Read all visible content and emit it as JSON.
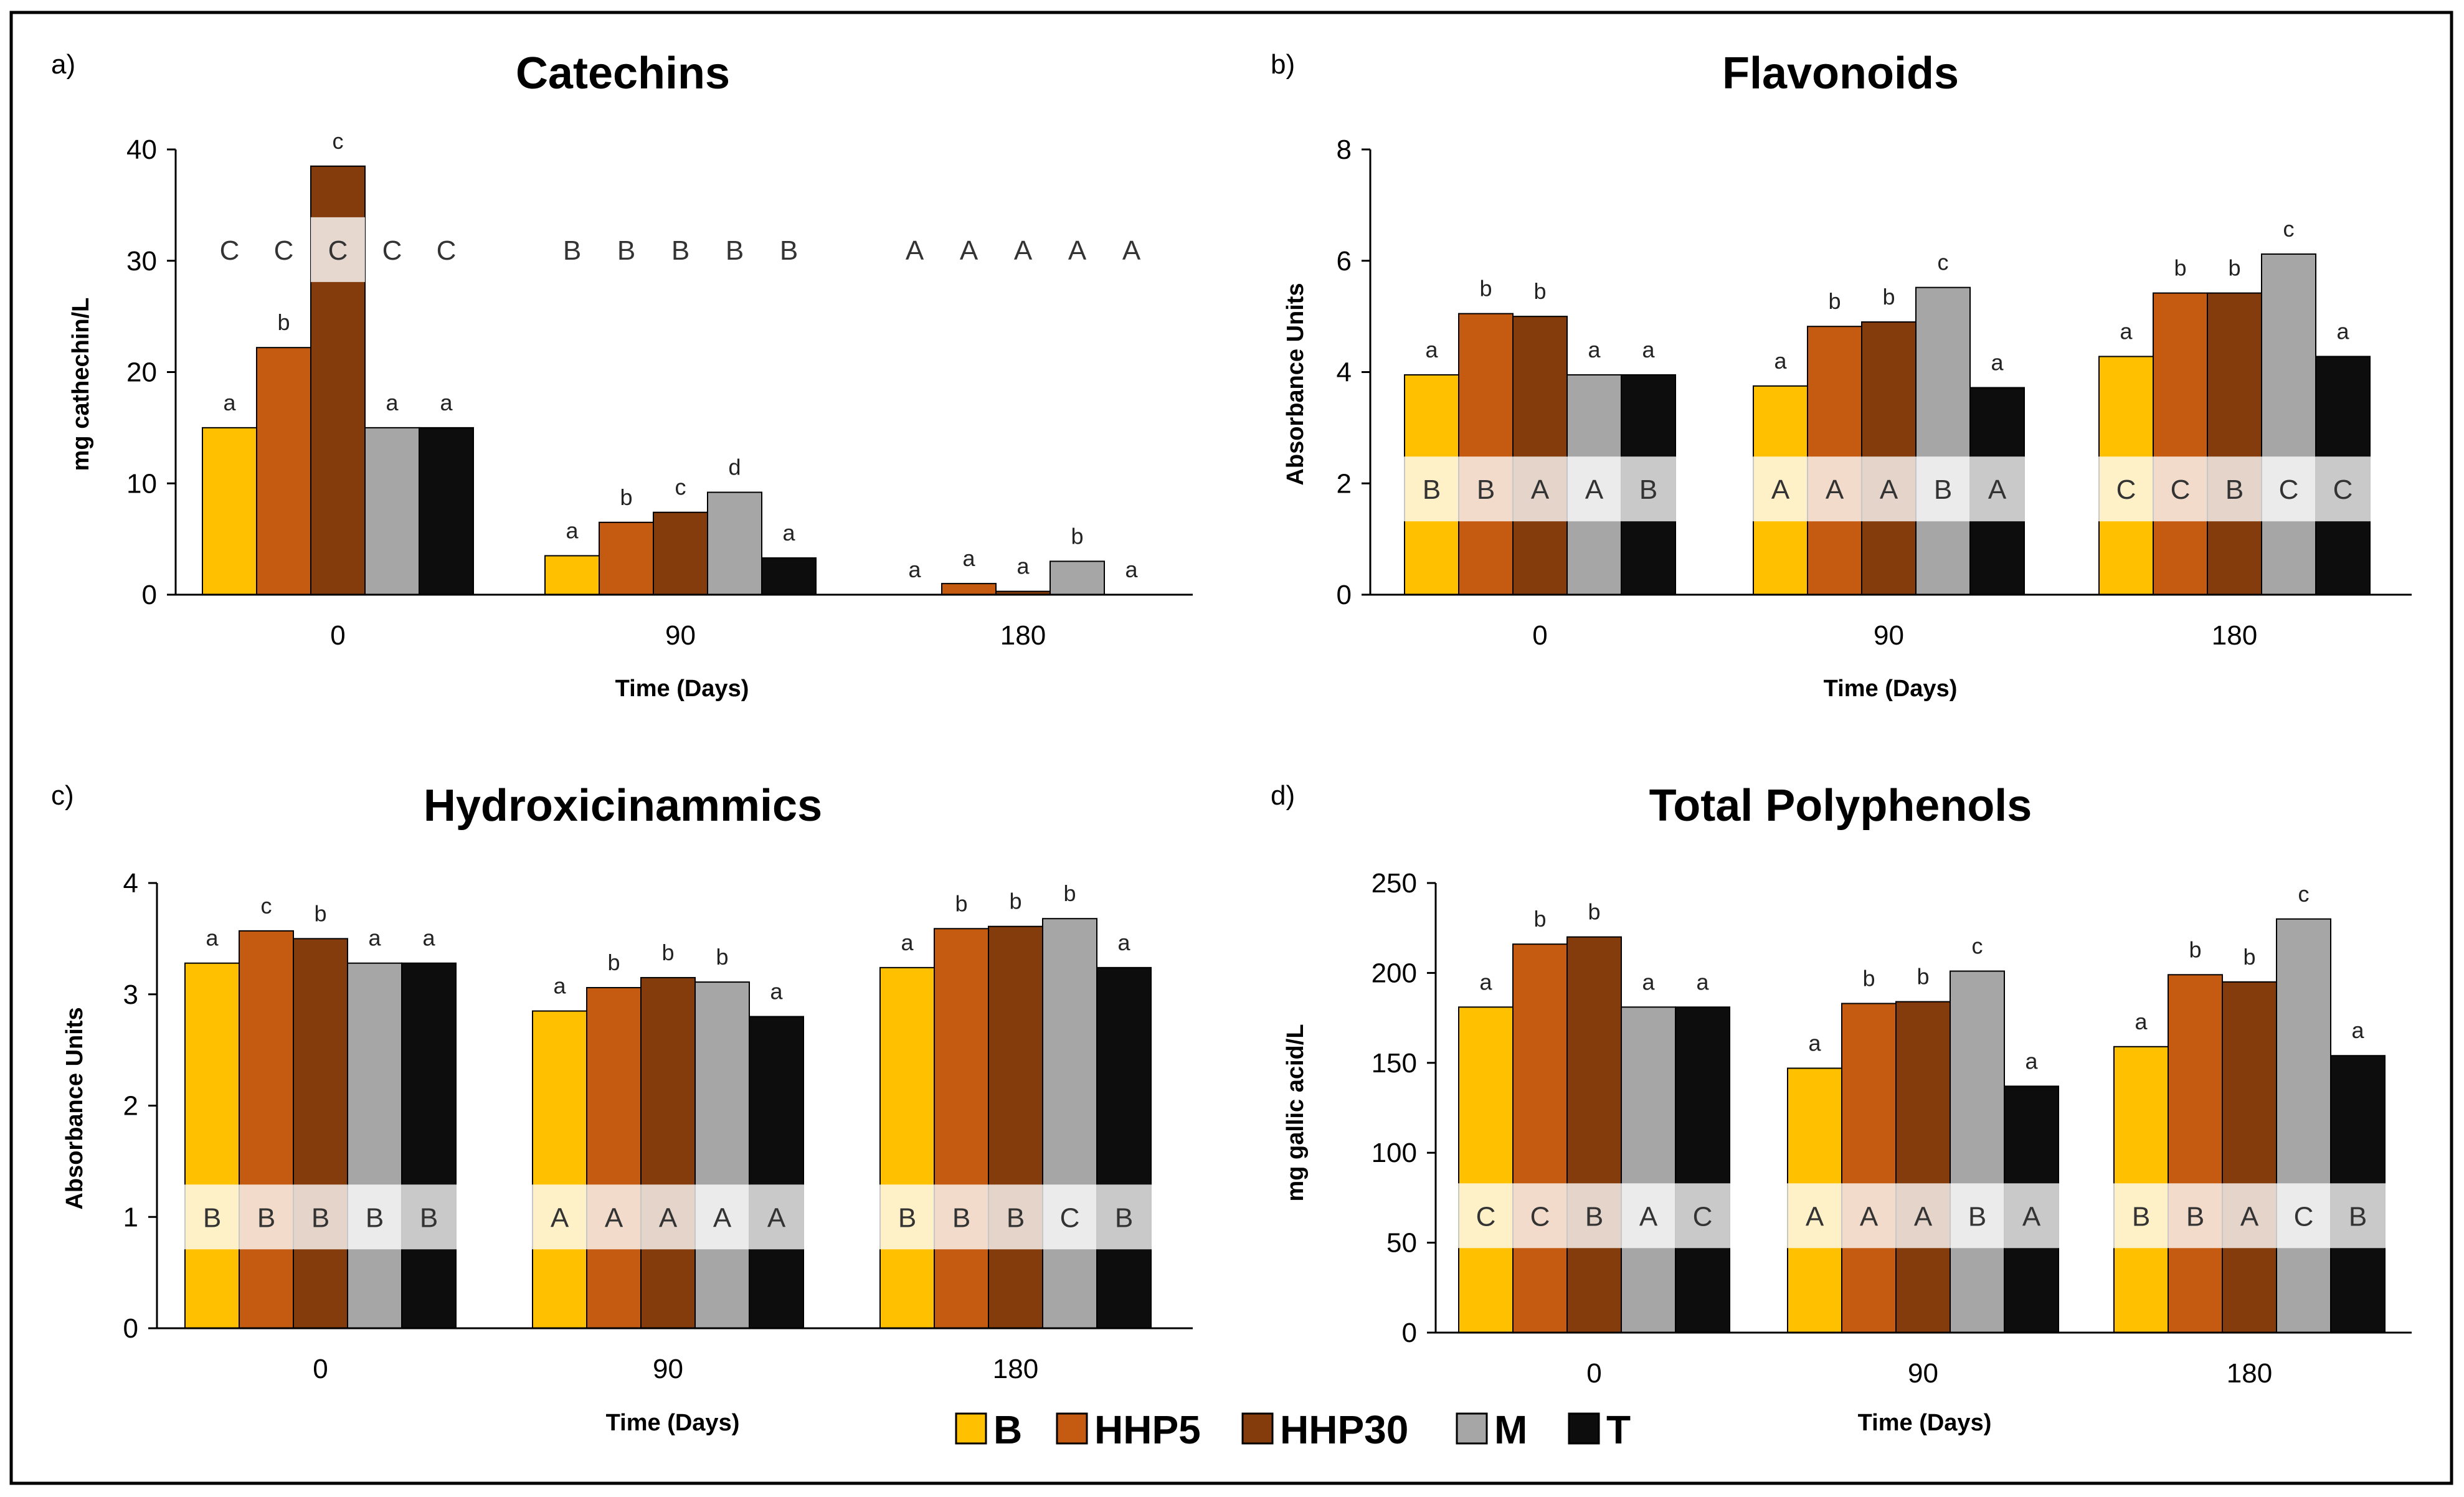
{
  "legend": [
    {
      "name": "B",
      "color": "#FFC000"
    },
    {
      "name": "HHP5",
      "color": "#C55A11"
    },
    {
      "name": "HHP30",
      "color": "#843C0C"
    },
    {
      "name": "M",
      "color": "#A6A6A6"
    },
    {
      "name": "T",
      "color": "#0D0D0D"
    }
  ],
  "chart_data": [
    {
      "panel": "a)",
      "type": "bar",
      "title": "Catechins",
      "ylabel": "mg cathechin/L",
      "xlabel": "Time (Days)",
      "ylim": [
        0,
        40
      ],
      "yticks": [
        0,
        10,
        20,
        30,
        40
      ],
      "categories": [
        "0",
        "90",
        "180"
      ],
      "series": [
        {
          "name": "B",
          "values": [
            15,
            3.5,
            0
          ]
        },
        {
          "name": "HHP5",
          "values": [
            22.2,
            6.5,
            1
          ]
        },
        {
          "name": "HHP30",
          "values": [
            38.5,
            7.4,
            0.3
          ]
        },
        {
          "name": "M",
          "values": [
            15,
            9.2,
            3
          ]
        },
        {
          "name": "T",
          "values": [
            15,
            3.3,
            0
          ]
        }
      ],
      "letters_lower": [
        [
          "a",
          "b",
          "c",
          "a",
          "a"
        ],
        [
          "a",
          "b",
          "c",
          "d",
          "a"
        ],
        [
          "a",
          "a",
          "a",
          "b",
          "a"
        ]
      ],
      "letters_upper": [
        [
          "C",
          "C",
          "C",
          "C",
          "C"
        ],
        [
          "B",
          "B",
          "B",
          "B",
          "B"
        ],
        [
          "A",
          "A",
          "A",
          "A",
          "A"
        ]
      ],
      "upper_band_value": 31,
      "upper_band_shaded": false
    },
    {
      "panel": "b)",
      "type": "bar",
      "title": "Flavonoids",
      "ylabel": "Absorbance  Units",
      "xlabel": "Time (Days)",
      "ylim": [
        0,
        8
      ],
      "yticks": [
        0,
        2,
        4,
        6,
        8
      ],
      "categories": [
        "0",
        "90",
        "180"
      ],
      "series": [
        {
          "name": "B",
          "values": [
            3.95,
            3.75,
            4.28
          ]
        },
        {
          "name": "HHP5",
          "values": [
            5.05,
            4.82,
            5.42
          ]
        },
        {
          "name": "HHP30",
          "values": [
            5.0,
            4.9,
            5.42
          ]
        },
        {
          "name": "M",
          "values": [
            3.95,
            5.52,
            6.12
          ]
        },
        {
          "name": "T",
          "values": [
            3.95,
            3.72,
            4.28
          ]
        }
      ],
      "letters_lower": [
        [
          "a",
          "b",
          "b",
          "a",
          "a"
        ],
        [
          "a",
          "b",
          "b",
          "c",
          "a"
        ],
        [
          "a",
          "b",
          "b",
          "c",
          "a"
        ]
      ],
      "letters_upper": [
        [
          "B",
          "B",
          "A",
          "A",
          "B"
        ],
        [
          "A",
          "A",
          "A",
          "B",
          "A"
        ],
        [
          "C",
          "C",
          "B",
          "C",
          "C"
        ]
      ],
      "upper_band_value": 1.9,
      "upper_band_shaded": true
    },
    {
      "panel": "c)",
      "type": "bar",
      "title": "Hydroxicinammics",
      "ylabel": "Absorbance Units",
      "xlabel": "Time (Days)",
      "ylim": [
        0,
        4
      ],
      "yticks": [
        0,
        1,
        2,
        3,
        4
      ],
      "categories": [
        "0",
        "90",
        "180"
      ],
      "series": [
        {
          "name": "B",
          "values": [
            3.28,
            2.85,
            3.24
          ]
        },
        {
          "name": "HHP5",
          "values": [
            3.57,
            3.06,
            3.59
          ]
        },
        {
          "name": "HHP30",
          "values": [
            3.5,
            3.15,
            3.61
          ]
        },
        {
          "name": "M",
          "values": [
            3.28,
            3.11,
            3.68
          ]
        },
        {
          "name": "T",
          "values": [
            3.28,
            2.8,
            3.24
          ]
        }
      ],
      "letters_lower": [
        [
          "a",
          "c",
          "b",
          "a",
          "a"
        ],
        [
          "a",
          "b",
          "b",
          "b",
          "a"
        ],
        [
          "a",
          "b",
          "b",
          "b",
          "a"
        ]
      ],
      "letters_upper": [
        [
          "B",
          "B",
          "B",
          "B",
          "B"
        ],
        [
          "A",
          "A",
          "A",
          "A",
          "A"
        ],
        [
          "B",
          "B",
          "B",
          "C",
          "B"
        ]
      ],
      "upper_band_value": 1,
      "upper_band_shaded": true
    },
    {
      "panel": "d)",
      "type": "bar",
      "title": "Total Polyphenols",
      "ylabel": "mg gallic acid/L",
      "xlabel": "Time (Days)",
      "ylim": [
        0,
        250
      ],
      "yticks": [
        0,
        50,
        100,
        150,
        200,
        250
      ],
      "categories": [
        "0",
        "90",
        "180"
      ],
      "series": [
        {
          "name": "B",
          "values": [
            181,
            147,
            159
          ]
        },
        {
          "name": "HHP5",
          "values": [
            216,
            183,
            199
          ]
        },
        {
          "name": "HHP30",
          "values": [
            220,
            184,
            195
          ]
        },
        {
          "name": "M",
          "values": [
            181,
            201,
            230
          ]
        },
        {
          "name": "T",
          "values": [
            181,
            137,
            154
          ]
        }
      ],
      "letters_lower": [
        [
          "a",
          "b",
          "b",
          "a",
          "a"
        ],
        [
          "a",
          "b",
          "b",
          "c",
          "a"
        ],
        [
          "a",
          "b",
          "b",
          "c",
          "a"
        ]
      ],
      "letters_upper": [
        [
          "C",
          "C",
          "B",
          "A",
          "C"
        ],
        [
          "A",
          "A",
          "A",
          "B",
          "A"
        ],
        [
          "B",
          "B",
          "A",
          "C",
          "B"
        ]
      ],
      "upper_band_value": 65,
      "upper_band_shaded": true
    }
  ]
}
